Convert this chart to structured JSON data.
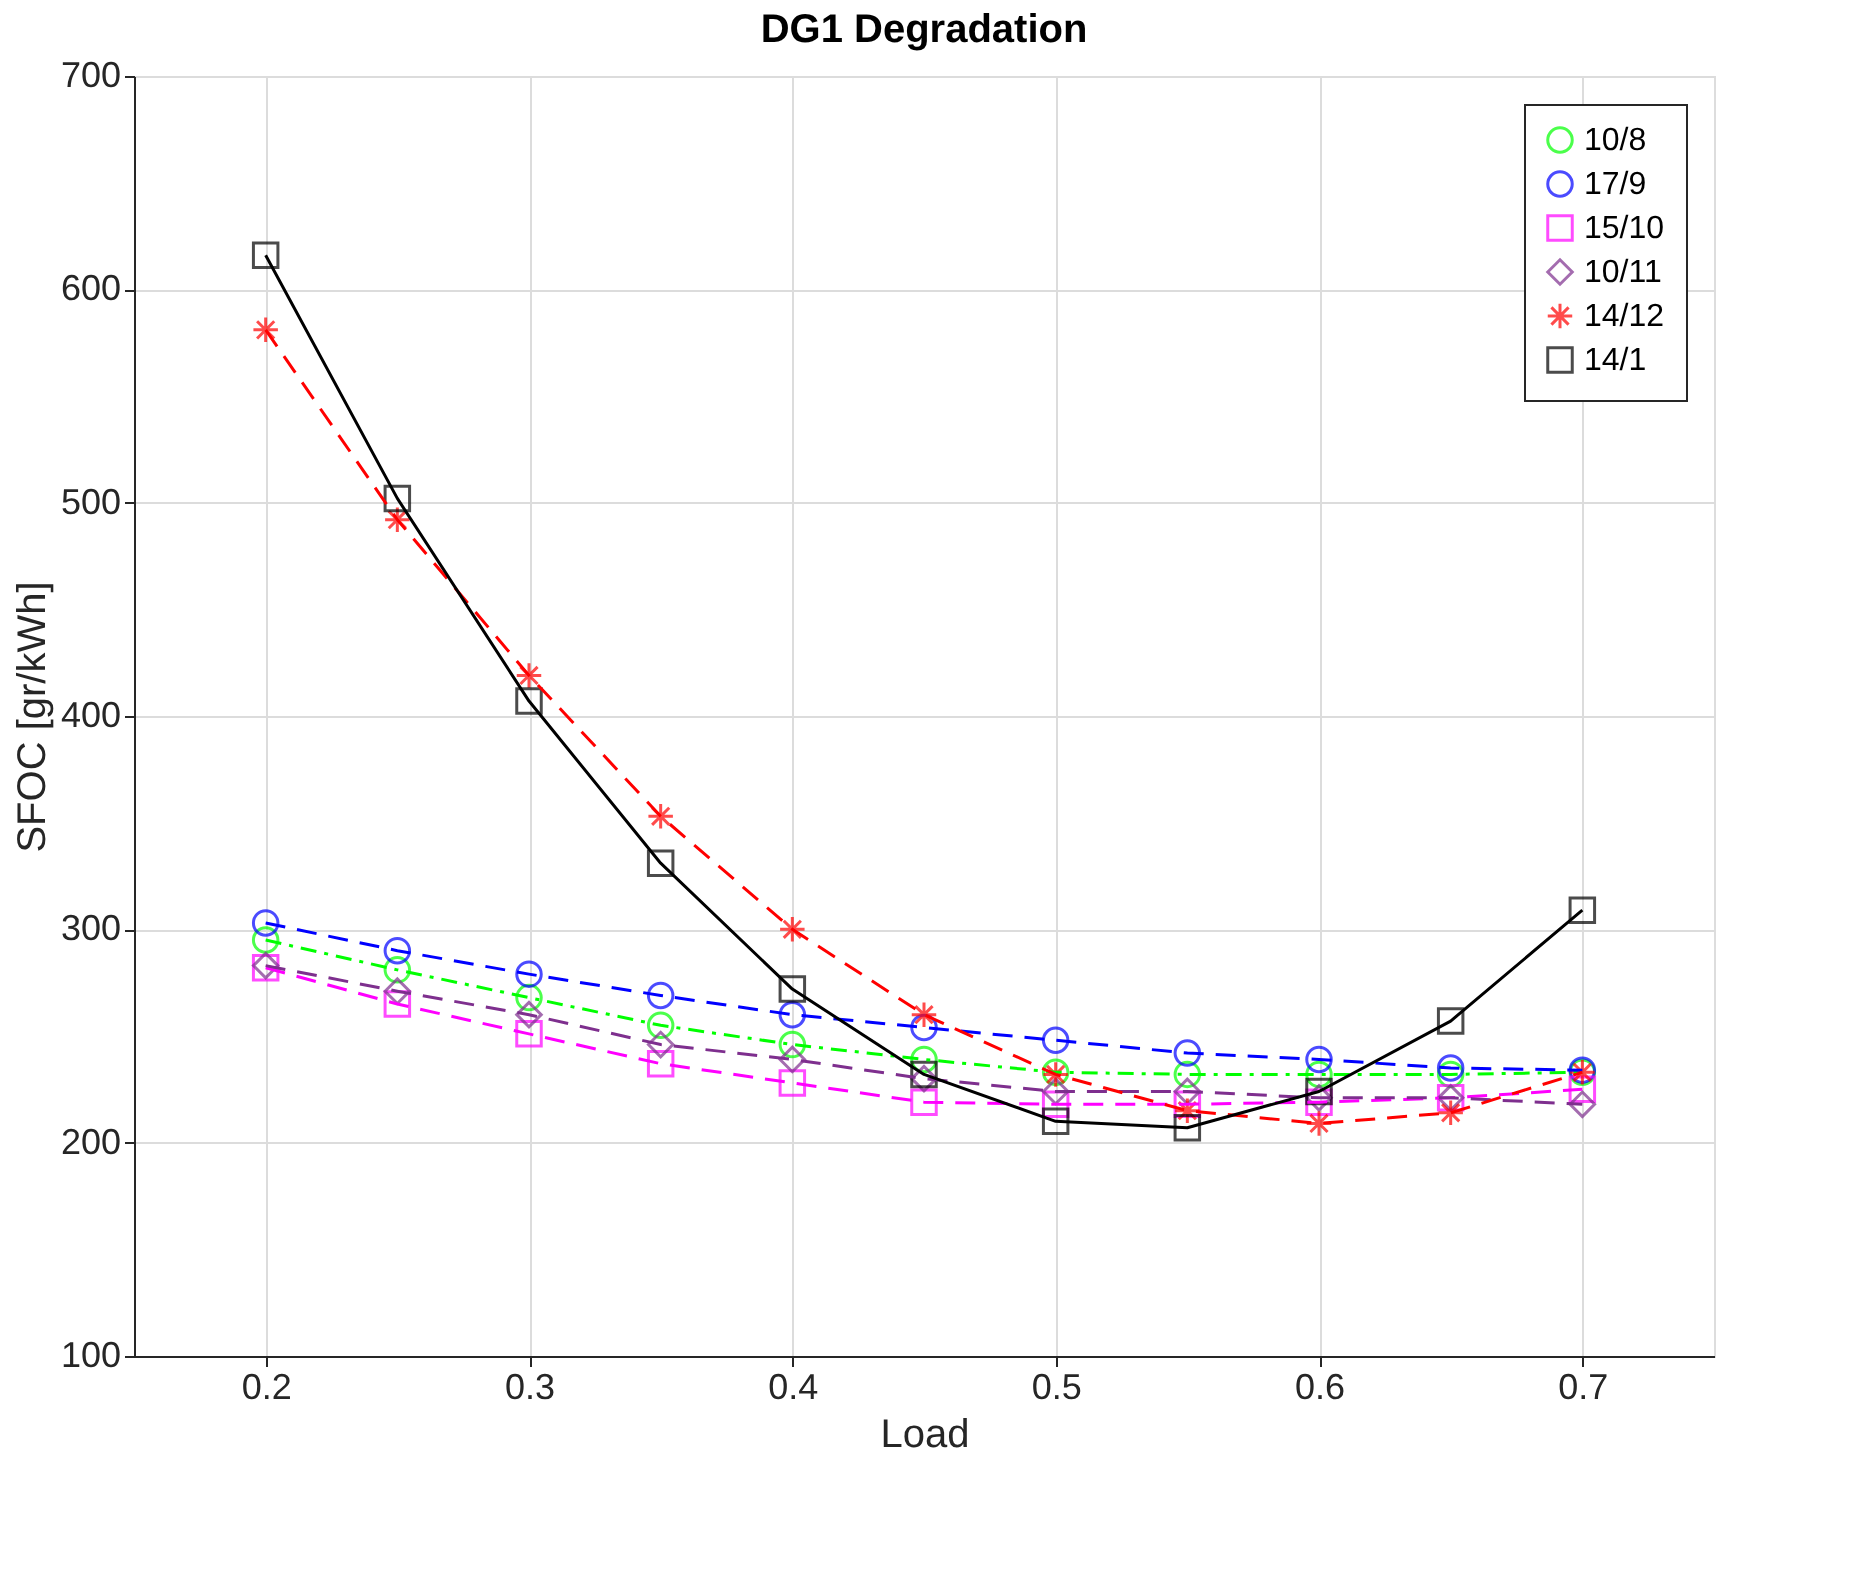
{
  "chart_data": {
    "type": "line",
    "title": "DG1 Degradation",
    "xlabel": "Load",
    "ylabel": "SFOC [gr/kWh]",
    "x": [
      0.2,
      0.25,
      0.3,
      0.35,
      0.4,
      0.45,
      0.5,
      0.55,
      0.6,
      0.65,
      0.7
    ],
    "xlim": [
      0.15,
      0.75
    ],
    "xticks": [
      0.2,
      0.3,
      0.4,
      0.5,
      0.6,
      0.7
    ],
    "ylim": [
      100,
      700
    ],
    "yticks": [
      100,
      200,
      300,
      400,
      500,
      600,
      700
    ],
    "grid": true,
    "legend": "top right",
    "series": [
      {
        "name": "10/8",
        "color": "#00ff00",
        "marker": "circle",
        "line_style": "dashdot",
        "values": [
          295,
          281,
          268,
          255,
          246,
          239,
          233,
          232,
          232,
          232,
          233
        ]
      },
      {
        "name": "17/9",
        "color": "#0000ff",
        "marker": "circle",
        "line_style": "dashed",
        "values": [
          303,
          290,
          279,
          269,
          260,
          254,
          248,
          242,
          239,
          235,
          234
        ]
      },
      {
        "name": "15/10",
        "color": "#ff00ff",
        "marker": "square",
        "line_style": "dashed",
        "values": [
          282,
          265,
          251,
          237,
          228,
          219,
          218,
          218,
          219,
          221,
          225
        ]
      },
      {
        "name": "10/11",
        "color": "#7e2f8e",
        "marker": "diamond",
        "line_style": "dashed",
        "values": [
          283,
          271,
          260,
          246,
          239,
          230,
          224,
          224,
          221,
          221,
          218
        ]
      },
      {
        "name": "14/12",
        "color": "#ff0000",
        "marker": "cross",
        "line_style": "dashed",
        "values": [
          581,
          492,
          419,
          353,
          300,
          260,
          232,
          215,
          209,
          214,
          233
        ]
      },
      {
        "name": "14/1",
        "color": "#000000",
        "marker": "square",
        "line_style": "solid",
        "values": [
          616,
          502,
          407,
          331,
          272,
          232,
          210,
          207,
          224,
          257,
          309
        ]
      }
    ]
  }
}
